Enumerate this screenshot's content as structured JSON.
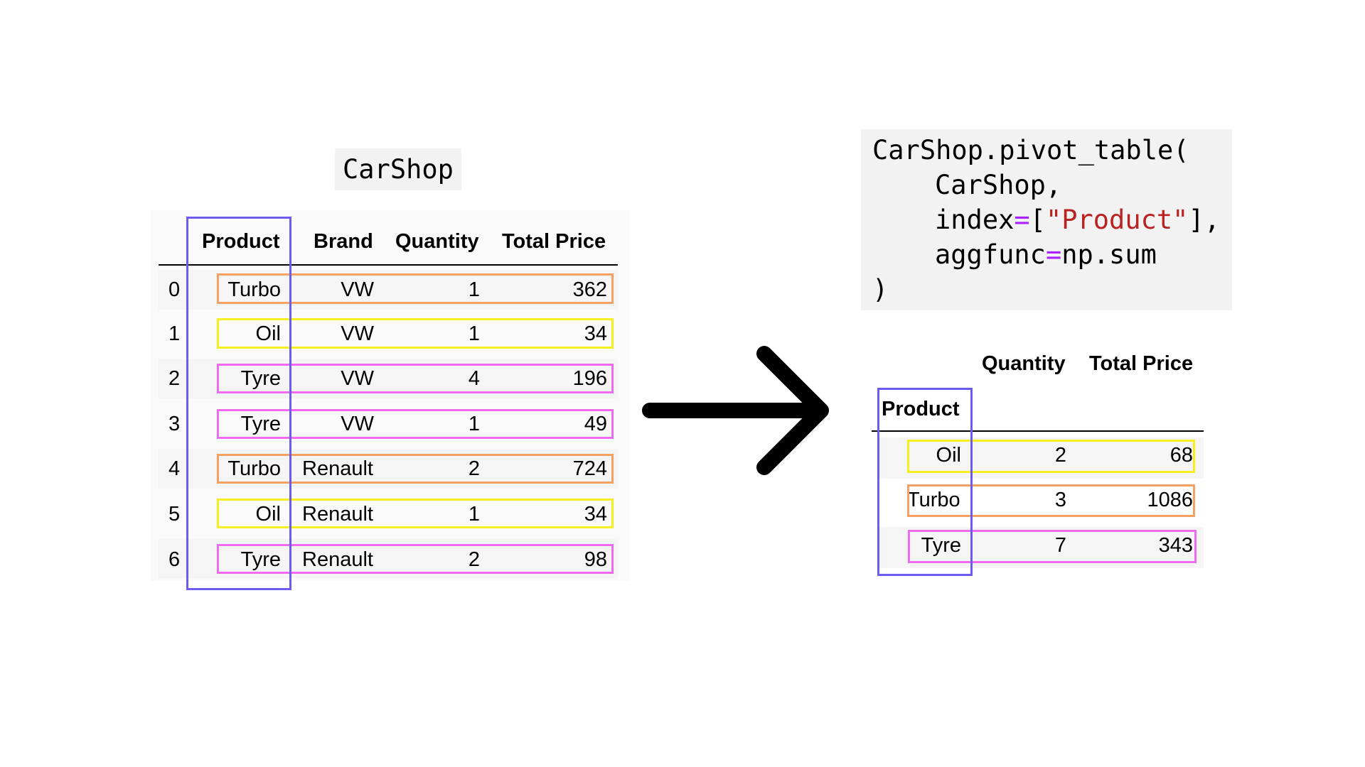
{
  "source": {
    "name_label": "CarShop",
    "columns": [
      "Product",
      "Brand",
      "Quantity",
      "Total Price"
    ],
    "rows": [
      {
        "index": "0",
        "product": "Turbo",
        "brand": "VW",
        "quantity": "1",
        "total_price": "362"
      },
      {
        "index": "1",
        "product": "Oil",
        "brand": "VW",
        "quantity": "1",
        "total_price": "34"
      },
      {
        "index": "2",
        "product": "Tyre",
        "brand": "VW",
        "quantity": "4",
        "total_price": "196"
      },
      {
        "index": "3",
        "product": "Tyre",
        "brand": "VW",
        "quantity": "1",
        "total_price": "49"
      },
      {
        "index": "4",
        "product": "Turbo",
        "brand": "Renault",
        "quantity": "2",
        "total_price": "724"
      },
      {
        "index": "5",
        "product": "Oil",
        "brand": "Renault",
        "quantity": "1",
        "total_price": "34"
      },
      {
        "index": "6",
        "product": "Tyre",
        "brand": "Renault",
        "quantity": "2",
        "total_price": "98"
      }
    ]
  },
  "code": {
    "line1": "CarShop.pivot_table(",
    "line2": "CarShop,",
    "line3_kw": "index",
    "line3_eq": "=",
    "line3_open": "[",
    "line3_str": "\"Product\"",
    "line3_close": "],",
    "line4_kw": "aggfunc",
    "line4_eq": "=",
    "line4_val": "np.sum",
    "line5": ")"
  },
  "result": {
    "columns": [
      "Quantity",
      "Total Price"
    ],
    "index_name": "Product",
    "rows": [
      {
        "product": "Oil",
        "quantity": "2",
        "total_price": "68"
      },
      {
        "product": "Turbo",
        "quantity": "3",
        "total_price": "1086"
      },
      {
        "product": "Tyre",
        "quantity": "7",
        "total_price": "343"
      }
    ]
  },
  "colors": {
    "index_box": "#6b5bf0",
    "turbo": "#f7a064",
    "oil": "#f6ee1e",
    "tyre": "#ef6cf0"
  }
}
